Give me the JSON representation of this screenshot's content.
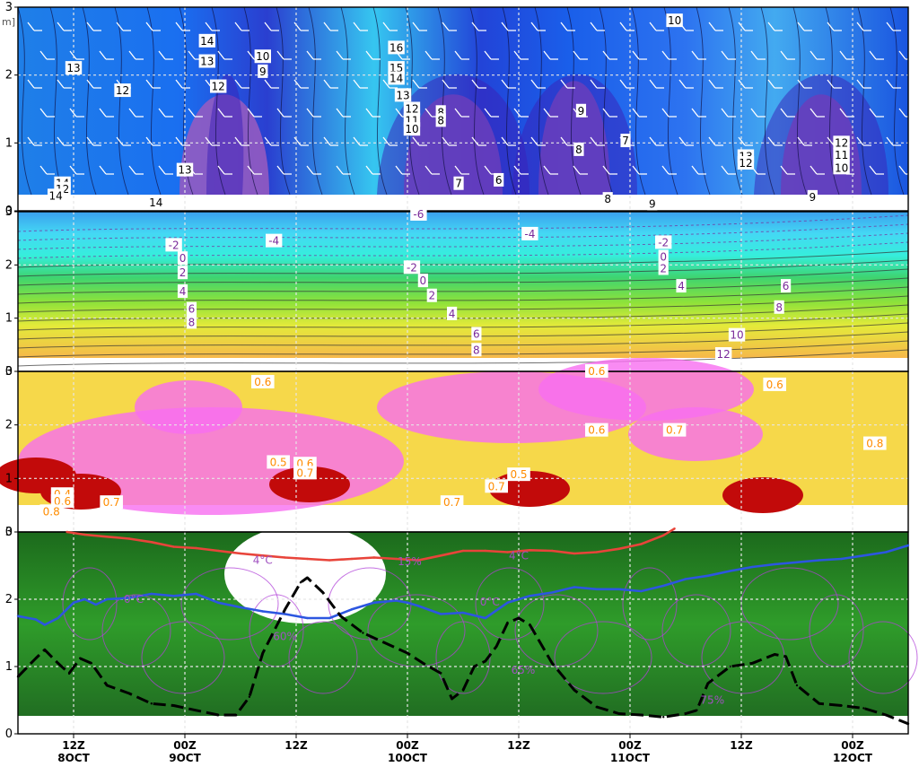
{
  "chart_data": [
    {
      "type": "heatmap",
      "panel": "wind",
      "y_unit_fragment": "m]",
      "ylim": [
        0,
        3
      ],
      "yticks": [
        0,
        1,
        2,
        3
      ],
      "ytick_labels": [
        "0",
        "1",
        "2",
        "3"
      ],
      "contour_labels": [
        {
          "text": "13",
          "x": 0.25,
          "y": 2.1
        },
        {
          "text": "14",
          "x": 0.2,
          "y": 0.4
        },
        {
          "text": "12",
          "x": 0.2,
          "y": 0.32
        },
        {
          "text": "14",
          "x": 0.17,
          "y": 0.22
        },
        {
          "text": "12",
          "x": 0.47,
          "y": 1.77
        },
        {
          "text": "13",
          "x": 0.75,
          "y": 0.6
        },
        {
          "text": "14",
          "x": 0.62,
          "y": 0.12
        },
        {
          "text": "14",
          "x": 0.85,
          "y": 2.5
        },
        {
          "text": "13",
          "x": 0.85,
          "y": 2.2
        },
        {
          "text": "12",
          "x": 0.9,
          "y": 1.83
        },
        {
          "text": "10",
          "x": 1.1,
          "y": 2.27
        },
        {
          "text": "9",
          "x": 1.1,
          "y": 2.05
        },
        {
          "text": "16",
          "x": 1.7,
          "y": 2.4
        },
        {
          "text": "15",
          "x": 1.7,
          "y": 2.1
        },
        {
          "text": "14",
          "x": 1.7,
          "y": 1.95
        },
        {
          "text": "13",
          "x": 1.73,
          "y": 1.7
        },
        {
          "text": "12",
          "x": 1.77,
          "y": 1.5
        },
        {
          "text": "11",
          "x": 1.77,
          "y": 1.33
        },
        {
          "text": "10",
          "x": 1.77,
          "y": 1.2
        },
        {
          "text": "8",
          "x": 1.9,
          "y": 1.45
        },
        {
          "text": "8",
          "x": 1.9,
          "y": 1.33
        },
        {
          "text": "7",
          "x": 1.98,
          "y": 0.4
        },
        {
          "text": "6",
          "x": 2.16,
          "y": 0.45
        },
        {
          "text": "9",
          "x": 2.53,
          "y": 1.47
        },
        {
          "text": "8",
          "x": 2.52,
          "y": 0.9
        },
        {
          "text": "7",
          "x": 2.73,
          "y": 1.03
        },
        {
          "text": "8",
          "x": 2.65,
          "y": 0.17
        },
        {
          "text": "9",
          "x": 2.85,
          "y": 0.1
        },
        {
          "text": "10",
          "x": 2.95,
          "y": 2.8
        },
        {
          "text": "13",
          "x": 3.27,
          "y": 0.8
        },
        {
          "text": "12",
          "x": 3.27,
          "y": 0.7
        },
        {
          "text": "12",
          "x": 3.7,
          "y": 1.0
        },
        {
          "text": "11",
          "x": 3.7,
          "y": 0.82
        },
        {
          "text": "10",
          "x": 3.7,
          "y": 0.63
        },
        {
          "text": "9",
          "x": 3.57,
          "y": 0.2
        }
      ]
    },
    {
      "type": "heatmap",
      "panel": "temperature",
      "ylim": [
        0,
        3
      ],
      "yticks": [
        0,
        1,
        2,
        3
      ],
      "ytick_labels": [
        "0",
        "1",
        "2",
        "3"
      ],
      "contour_labels": [
        {
          "text": "-6",
          "x": 1.8,
          "y": 2.95
        },
        {
          "text": "-4",
          "x": 1.15,
          "y": 2.45
        },
        {
          "text": "-4",
          "x": 2.3,
          "y": 2.58
        },
        {
          "text": "-2",
          "x": 0.7,
          "y": 2.37
        },
        {
          "text": "-2",
          "x": 1.77,
          "y": 1.95
        },
        {
          "text": "-2",
          "x": 2.9,
          "y": 2.42
        },
        {
          "text": "0",
          "x": 0.74,
          "y": 2.12
        },
        {
          "text": "0",
          "x": 1.82,
          "y": 1.7
        },
        {
          "text": "0",
          "x": 2.9,
          "y": 2.15
        },
        {
          "text": "2",
          "x": 0.74,
          "y": 1.85
        },
        {
          "text": "2",
          "x": 1.86,
          "y": 1.42
        },
        {
          "text": "2",
          "x": 2.9,
          "y": 1.93
        },
        {
          "text": "4",
          "x": 0.74,
          "y": 1.5
        },
        {
          "text": "4",
          "x": 1.95,
          "y": 1.08
        },
        {
          "text": "4",
          "x": 2.98,
          "y": 1.6
        },
        {
          "text": "6",
          "x": 0.78,
          "y": 1.17
        },
        {
          "text": "6",
          "x": 2.06,
          "y": 0.7
        },
        {
          "text": "6",
          "x": 3.45,
          "y": 1.6
        },
        {
          "text": "8",
          "x": 0.78,
          "y": 0.92
        },
        {
          "text": "8",
          "x": 2.06,
          "y": 0.4
        },
        {
          "text": "8",
          "x": 3.42,
          "y": 1.2
        },
        {
          "text": "10",
          "x": 3.23,
          "y": 0.68
        },
        {
          "text": "12",
          "x": 3.17,
          "y": 0.32
        }
      ]
    },
    {
      "type": "heatmap",
      "panel": "third",
      "ylim": [
        0,
        3
      ],
      "yticks": [
        0,
        1,
        2,
        3
      ],
      "ytick_labels": [
        "0",
        "1",
        "2",
        "3"
      ],
      "contour_labels": [
        {
          "text": "0.6",
          "x": 1.1,
          "y": 2.8
        },
        {
          "text": "0.6",
          "x": 2.6,
          "y": 3.0
        },
        {
          "text": "0.6",
          "x": 3.4,
          "y": 2.75
        },
        {
          "text": "0.6",
          "x": 2.6,
          "y": 1.9
        },
        {
          "text": "0.7",
          "x": 2.95,
          "y": 1.9
        },
        {
          "text": "0.8",
          "x": 3.85,
          "y": 1.65
        },
        {
          "text": "0.5",
          "x": 1.17,
          "y": 1.3
        },
        {
          "text": "0.6",
          "x": 1.29,
          "y": 1.27
        },
        {
          "text": "0.7",
          "x": 1.29,
          "y": 1.1
        },
        {
          "text": "0.5",
          "x": 2.25,
          "y": 1.07
        },
        {
          "text": "0.7",
          "x": 2.15,
          "y": 0.85
        },
        {
          "text": "0.7",
          "x": 1.95,
          "y": 0.55
        },
        {
          "text": "0.4",
          "x": 0.2,
          "y": 0.7
        },
        {
          "text": "0.6",
          "x": 0.2,
          "y": 0.57
        },
        {
          "text": "0.8",
          "x": 0.15,
          "y": 0.38
        },
        {
          "text": "0.7",
          "x": 0.42,
          "y": 0.55
        }
      ]
    },
    {
      "type": "heatmap",
      "panel": "humidity",
      "ylim": [
        0,
        3
      ],
      "yticks": [
        0,
        1,
        2,
        3
      ],
      "ytick_labels": [
        "0",
        "1",
        "2",
        "3"
      ],
      "xticks": [
        0.25,
        0.75,
        1.25,
        1.75,
        2.25,
        2.75,
        3.25,
        3.75
      ],
      "xtick_labels": [
        [
          "12Z",
          "8OCT"
        ],
        [
          "00Z",
          "9OCT"
        ],
        [
          "12Z",
          ""
        ],
        [
          "00Z",
          "10OCT"
        ],
        [
          "12Z",
          ""
        ],
        [
          "00Z",
          "11OCT"
        ],
        [
          "12Z",
          ""
        ],
        [
          "00Z",
          "12OCT"
        ]
      ],
      "series": [
        {
          "name": "4°C",
          "color": "#e8443a",
          "x": [
            0.22,
            0.3,
            0.4,
            0.5,
            0.6,
            0.7,
            0.8,
            0.9,
            1.0,
            1.1,
            1.2,
            1.3,
            1.4,
            1.5,
            1.6,
            1.7,
            1.8,
            1.9,
            2.0,
            2.1,
            2.2,
            2.3,
            2.4,
            2.5,
            2.6,
            2.7,
            2.8,
            2.9,
            2.95
          ],
          "values": [
            3.0,
            2.96,
            2.93,
            2.9,
            2.85,
            2.78,
            2.76,
            2.72,
            2.68,
            2.65,
            2.62,
            2.6,
            2.58,
            2.6,
            2.62,
            2.6,
            2.58,
            2.65,
            2.72,
            2.72,
            2.7,
            2.73,
            2.72,
            2.68,
            2.7,
            2.75,
            2.82,
            2.95,
            3.05
          ]
        },
        {
          "name": "0°C",
          "color": "#2c56e0",
          "x": [
            0.0,
            0.08,
            0.12,
            0.18,
            0.25,
            0.3,
            0.35,
            0.4,
            0.5,
            0.6,
            0.7,
            0.8,
            0.9,
            1.0,
            1.1,
            1.2,
            1.3,
            1.4,
            1.5,
            1.6,
            1.7,
            1.75,
            1.8,
            1.9,
            2.0,
            2.1,
            2.2,
            2.3,
            2.4,
            2.5,
            2.6,
            2.7,
            2.8,
            2.9,
            3.0,
            3.1,
            3.2,
            3.3,
            3.4,
            3.5,
            3.6,
            3.7,
            3.8,
            3.9,
            4.0
          ],
          "values": [
            1.75,
            1.7,
            1.62,
            1.72,
            1.95,
            2.0,
            1.92,
            2.0,
            2.02,
            2.08,
            2.05,
            2.08,
            1.95,
            1.88,
            1.82,
            1.78,
            1.72,
            1.72,
            1.85,
            1.95,
            1.98,
            1.95,
            1.9,
            1.78,
            1.8,
            1.72,
            1.95,
            2.05,
            2.1,
            2.18,
            2.15,
            2.15,
            2.12,
            2.2,
            2.3,
            2.35,
            2.42,
            2.48,
            2.52,
            2.55,
            2.58,
            2.6,
            2.65,
            2.7,
            2.8
          ]
        },
        {
          "name": "black",
          "color": "#000000",
          "dashed": true,
          "x": [
            0.0,
            0.08,
            0.12,
            0.18,
            0.23,
            0.28,
            0.33,
            0.4,
            0.5,
            0.6,
            0.7,
            0.8,
            0.9,
            0.98,
            1.04,
            1.1,
            1.2,
            1.27,
            1.3,
            1.37,
            1.45,
            1.55,
            1.65,
            1.75,
            1.82,
            1.9,
            1.95,
            2.0,
            2.05,
            2.1,
            2.15,
            2.2,
            2.25,
            2.3,
            2.4,
            2.5,
            2.6,
            2.7,
            2.8,
            2.9,
            3.0,
            3.05,
            3.1,
            3.2,
            3.3,
            3.4,
            3.45,
            3.5,
            3.6,
            3.7,
            3.8,
            3.9,
            4.0
          ],
          "values": [
            0.85,
            1.12,
            1.25,
            1.05,
            0.9,
            1.12,
            1.05,
            0.72,
            0.6,
            0.45,
            0.42,
            0.35,
            0.28,
            0.28,
            0.55,
            1.2,
            1.85,
            2.25,
            2.32,
            2.1,
            1.75,
            1.5,
            1.35,
            1.2,
            1.05,
            0.9,
            0.52,
            0.65,
            1.0,
            1.08,
            1.3,
            1.65,
            1.72,
            1.62,
            1.05,
            0.65,
            0.4,
            0.3,
            0.28,
            0.25,
            0.3,
            0.35,
            0.75,
            1.0,
            1.05,
            1.18,
            1.15,
            0.72,
            0.45,
            0.42,
            0.38,
            0.28,
            0.15
          ]
        }
      ],
      "contour_labels": [
        {
          "text": "4°C",
          "x": 1.1,
          "y": 2.58
        },
        {
          "text": "4°C",
          "x": 2.25,
          "y": 2.65
        },
        {
          "text": "15%",
          "x": 1.76,
          "y": 2.56
        },
        {
          "text": "0°C",
          "x": 0.52,
          "y": 2.0
        },
        {
          "text": "0°C",
          "x": 2.12,
          "y": 1.96
        },
        {
          "text": "60%",
          "x": 1.2,
          "y": 1.45
        },
        {
          "text": "65%",
          "x": 2.27,
          "y": 0.95
        },
        {
          "text": "75%",
          "x": 3.12,
          "y": 0.5
        }
      ]
    }
  ]
}
